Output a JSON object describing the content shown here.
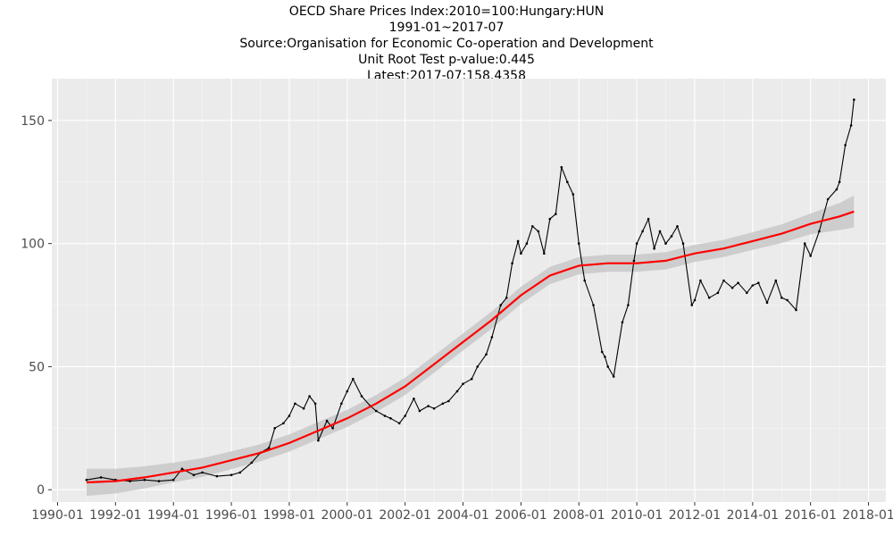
{
  "header": {
    "line1": "OECD Share Prices Index:2010=100:Hungary:HUN",
    "line2": "1991-01~2017-07",
    "line3": "Source:Organisation for Economic Co-operation and Development",
    "line4": "Unit Root Test p-value:0.445",
    "line5": "Latest:2017-07:158.4358"
  },
  "chart_data": {
    "type": "line",
    "title": "OECD Share Prices Index:2010=100:Hungary:HUN",
    "subtitle": "1991-01~2017-07",
    "xlabel": "",
    "ylabel": "",
    "xlim": [
      1989.8,
      2018.6
    ],
    "ylim": [
      -5,
      167
    ],
    "x_ticks": [
      "1990-01",
      "1992-01",
      "1994-01",
      "1996-01",
      "1998-01",
      "2000-01",
      "2002-01",
      "2004-01",
      "2006-01",
      "2008-01",
      "2010-01",
      "2012-01",
      "2014-01",
      "2016-01",
      "2018-01"
    ],
    "y_ticks": [
      0,
      50,
      100,
      150
    ],
    "grid": true,
    "background": "#ebebeb",
    "series": [
      {
        "role": "share price index (monthly)",
        "color": "#000000",
        "x": [
          1991.0,
          1991.5,
          1992.0,
          1992.5,
          1993.0,
          1993.5,
          1994.0,
          1994.3,
          1994.7,
          1995.0,
          1995.5,
          1996.0,
          1996.3,
          1996.7,
          1997.0,
          1997.3,
          1997.5,
          1997.8,
          1998.0,
          1998.2,
          1998.5,
          1998.7,
          1998.9,
          1999.0,
          1999.3,
          1999.5,
          1999.8,
          2000.0,
          2000.2,
          2000.5,
          2000.8,
          2001.0,
          2001.3,
          2001.5,
          2001.8,
          2002.0,
          2002.3,
          2002.5,
          2002.8,
          2003.0,
          2003.3,
          2003.5,
          2003.8,
          2004.0,
          2004.3,
          2004.5,
          2004.8,
          2005.0,
          2005.3,
          2005.5,
          2005.7,
          2005.9,
          2006.0,
          2006.2,
          2006.4,
          2006.6,
          2006.8,
          2007.0,
          2007.2,
          2007.4,
          2007.6,
          2007.8,
          2008.0,
          2008.2,
          2008.5,
          2008.8,
          2008.9,
          2009.0,
          2009.2,
          2009.5,
          2009.7,
          2009.9,
          2010.0,
          2010.2,
          2010.4,
          2010.6,
          2010.8,
          2011.0,
          2011.2,
          2011.4,
          2011.6,
          2011.9,
          2012.0,
          2012.2,
          2012.5,
          2012.8,
          2013.0,
          2013.3,
          2013.5,
          2013.8,
          2014.0,
          2014.2,
          2014.5,
          2014.8,
          2015.0,
          2015.2,
          2015.5,
          2015.8,
          2016.0,
          2016.3,
          2016.6,
          2016.9,
          2017.0,
          2017.2,
          2017.4,
          2017.5
        ],
        "values": [
          4,
          5,
          4,
          3.5,
          4,
          3.5,
          4,
          8.5,
          6,
          7,
          5.5,
          6,
          7,
          11,
          15,
          17,
          25,
          27,
          30,
          35,
          33,
          38,
          35,
          20,
          28,
          25,
          35,
          40,
          45,
          38,
          34,
          32,
          30,
          29,
          27,
          30,
          37,
          32,
          34,
          33,
          35,
          36,
          40,
          43,
          45,
          50,
          55,
          62,
          75,
          78,
          92,
          101,
          96,
          100,
          107,
          105,
          96,
          110,
          112,
          131,
          125,
          120,
          100,
          85,
          75,
          56,
          54,
          50,
          46,
          68,
          75,
          93,
          100,
          105,
          110,
          98,
          105,
          100,
          103,
          107,
          100,
          75,
          77,
          85,
          78,
          80,
          85,
          82,
          84,
          80,
          83,
          84,
          76,
          85,
          78,
          77,
          73,
          100,
          95,
          105,
          118,
          122,
          125,
          140,
          148,
          158.4358
        ]
      },
      {
        "role": "smoothed trend",
        "color": "#ff0000",
        "x": [
          1991,
          1992,
          1993,
          1994,
          1995,
          1996,
          1997,
          1998,
          1999,
          2000,
          2001,
          2002,
          2003,
          2004,
          2005,
          2006,
          2007,
          2008,
          2009,
          2010,
          2011,
          2012,
          2013,
          2014,
          2015,
          2016,
          2017,
          2017.5
        ],
        "values": [
          3,
          3.5,
          5,
          7,
          9,
          12,
          15,
          19,
          24,
          29,
          35,
          42,
          51,
          60,
          69,
          79,
          87,
          91,
          92,
          92,
          93,
          96,
          98,
          101,
          104,
          108,
          111,
          113
        ],
        "band_halfwidth": [
          5.5,
          5,
          4.5,
          4,
          3.8,
          3.6,
          3.5,
          3.5,
          3.5,
          3.5,
          3.5,
          3.5,
          3.5,
          3.5,
          3.5,
          3.5,
          3.5,
          3.5,
          3.5,
          3.5,
          3.5,
          3.5,
          3.5,
          3.6,
          3.8,
          4.2,
          5.5,
          6.5
        ],
        "band_color": "#c8c8c8"
      }
    ]
  }
}
